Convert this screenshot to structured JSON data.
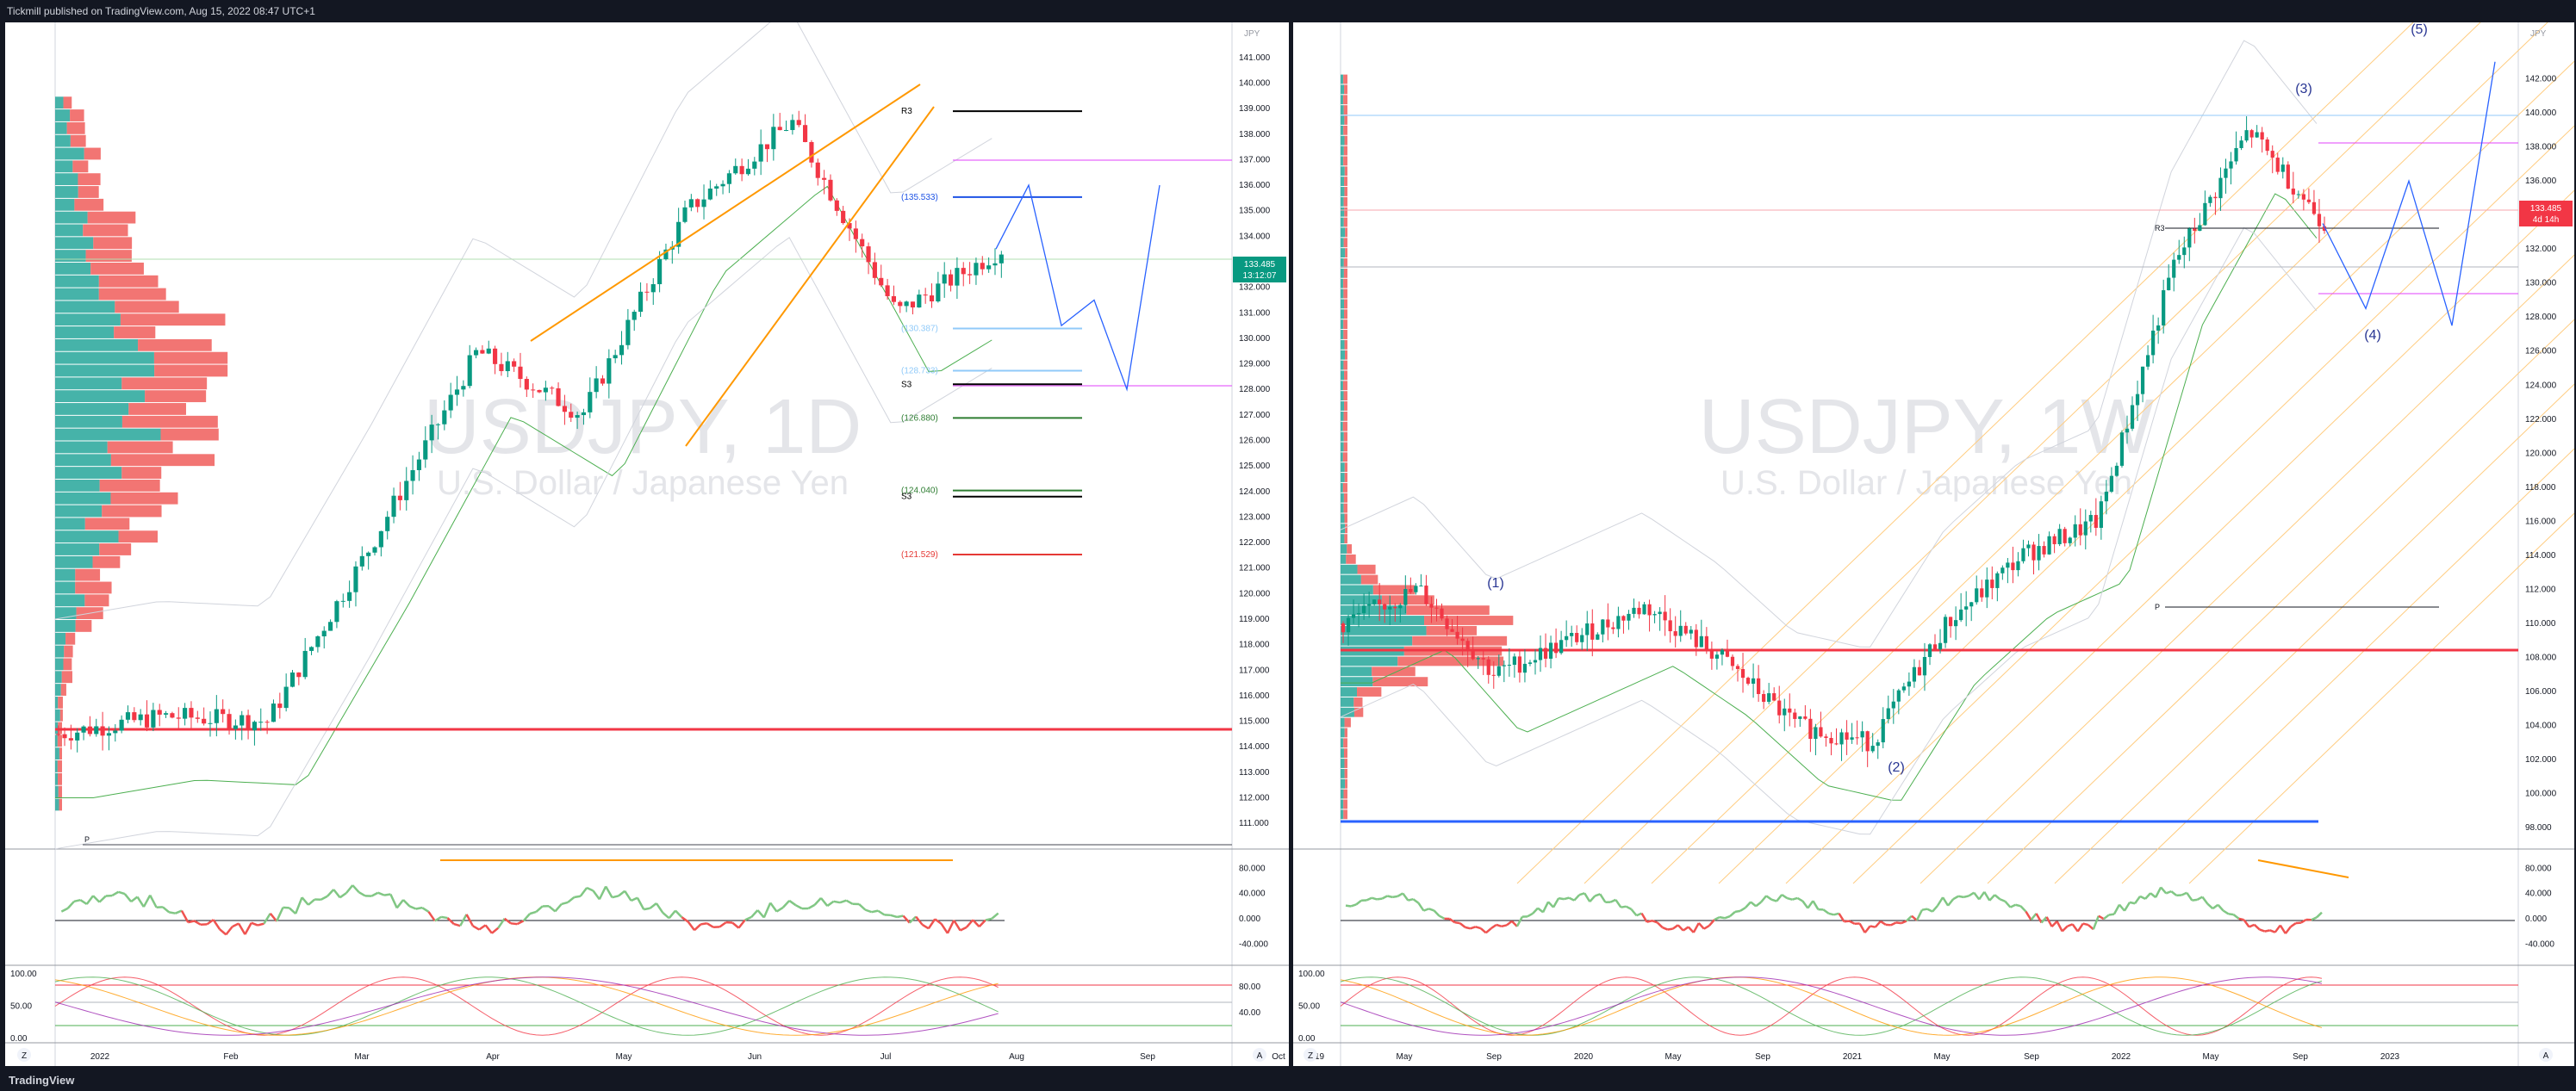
{
  "header": {
    "publish_text": "Tickmill published on TradingView.com, Aug 15, 2022 08:47 UTC+1"
  },
  "footer": {
    "brand": "TradingView"
  },
  "charts": [
    {
      "id": "left",
      "watermark": "USDJPY, 1D",
      "subtitle": "U.S. Dollar / Japanese Yen",
      "currency": "JPY",
      "y_ticks": [
        "141.000",
        "140.000",
        "139.000",
        "138.000",
        "137.000",
        "136.000",
        "135.000",
        "134.000",
        "133.000",
        "132.000",
        "131.000",
        "130.000",
        "129.000",
        "128.000",
        "127.000",
        "126.000",
        "125.000",
        "124.000",
        "123.000",
        "122.000",
        "121.000",
        "120.000",
        "119.000",
        "118.000",
        "117.000",
        "116.000",
        "115.000",
        "114.000",
        "113.000",
        "112.000",
        "111.000"
      ],
      "x_ticks": [
        "2022",
        "Feb",
        "Mar",
        "Apr",
        "May",
        "Jun",
        "Jul",
        "Aug",
        "Sep",
        "Oct"
      ],
      "price_label": "133.485",
      "time_label": "13:12:07",
      "levels": [
        {
          "label": "R3",
          "value": 138.9,
          "color": "#000000"
        },
        {
          "label": "(135.533)",
          "value": 135.533,
          "color": "#1e53e5"
        },
        {
          "label": "(130.387)",
          "value": 130.387,
          "color": "#90caf9"
        },
        {
          "label": "(128.733)",
          "value": 128.733,
          "color": "#90caf9"
        },
        {
          "label": "S3",
          "value": 128.2,
          "color": "#000000"
        },
        {
          "label": "(126.880)",
          "value": 126.88,
          "color": "#2e7d32"
        },
        {
          "label": "(124.040)",
          "value": 124.04,
          "color": "#2e7d32"
        },
        {
          "label": "S3",
          "value": 123.8,
          "color": "#000000"
        },
        {
          "label": "(121.529)",
          "value": 121.529,
          "color": "#e53935"
        }
      ],
      "pivot_label": "P",
      "rsi_ticks": [
        "80.000",
        "40.000",
        "0.000",
        "-40.000"
      ],
      "stoch_ticks": [
        "100.00",
        "50.00",
        "0.00"
      ],
      "stoch_right_ticks": [
        "80.00",
        "40.00"
      ],
      "corner_left": "Z",
      "corner_right": "A"
    },
    {
      "id": "right",
      "watermark": "USDJPY, 1W",
      "subtitle": "U.S. Dollar / Japanese Yen",
      "currency": "JPY",
      "y_ticks": [
        "142.000",
        "140.000",
        "138.000",
        "136.000",
        "134.000",
        "132.000",
        "130.000",
        "128.000",
        "126.000",
        "124.000",
        "122.000",
        "120.000",
        "118.000",
        "116.000",
        "114.000",
        "112.000",
        "110.000",
        "108.000",
        "106.000",
        "104.000",
        "102.000",
        "100.000",
        "98.000"
      ],
      "x_ticks": [
        "2019",
        "May",
        "Sep",
        "2020",
        "May",
        "Sep",
        "2021",
        "May",
        "Sep",
        "2022",
        "May",
        "Sep",
        "2023"
      ],
      "price_label": "133.485",
      "time_label": "4d 14h",
      "waves": [
        "(1)",
        "(2)",
        "(3)",
        "(4)",
        "(5)"
      ],
      "r3_label": "R3",
      "pivot_label": "P",
      "rsi_ticks": [
        "80.000",
        "40.000",
        "0.000",
        "-40.000"
      ],
      "stoch_ticks": [
        "100.00",
        "50.00",
        "0.00"
      ],
      "corner_left": "Z",
      "corner_right": "A"
    }
  ],
  "chart_data": [
    {
      "type": "candlestick",
      "symbol": "USDJPY",
      "timeframe": "1D",
      "x": [
        "2022",
        "Feb",
        "Mar",
        "Apr",
        "May",
        "Jun",
        "Jul",
        "Aug"
      ],
      "close_path": [
        114.5,
        115.2,
        115.0,
        122.0,
        129.5,
        127.0,
        135.0,
        138.5,
        131.0,
        133.485
      ],
      "projection": [
        133.5,
        136.0,
        130.5,
        131.5,
        128.0,
        136.0
      ],
      "ylim": [
        110.5,
        141.5
      ],
      "last_price": 133.485
    },
    {
      "type": "candlestick",
      "symbol": "USDJPY",
      "timeframe": "1W",
      "x": [
        "2019",
        "May",
        "Sep",
        "2020",
        "May",
        "Sep",
        "2021",
        "May",
        "Sep",
        "2022",
        "May",
        "Sep",
        "2023"
      ],
      "close_path": [
        110,
        112,
        107,
        109,
        111,
        108,
        104,
        103,
        110,
        114,
        116,
        131,
        139,
        133.485
      ],
      "projection": [
        133.5,
        128.5,
        136.0,
        127.5,
        143.0
      ],
      "ylim": [
        97.5,
        144.0
      ],
      "last_price": 133.485
    }
  ]
}
